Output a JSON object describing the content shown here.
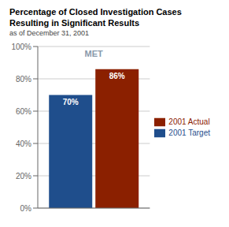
{
  "chart_data": {
    "type": "bar",
    "title": "Percentage of Closed Investigation Cases\nResulting in Significant Results",
    "subtitle": "as of December 31, 2001",
    "categories": [
      null
    ],
    "series": [
      {
        "name": "2001 Target",
        "color": "#1F4E8C",
        "values": [
          70
        ],
        "value_labels": [
          "70%"
        ]
      },
      {
        "name": "2001 Actual",
        "color": "#8B2000",
        "values": [
          86
        ],
        "value_labels": [
          "86%"
        ]
      }
    ],
    "ylim": [
      0,
      100
    ],
    "yticks": [
      {
        "value": 0,
        "label": "0%"
      },
      {
        "value": 20,
        "label": "20%"
      },
      {
        "value": 40,
        "label": "40%"
      },
      {
        "value": 60,
        "label": "60%"
      },
      {
        "value": 80,
        "label": "80%"
      },
      {
        "value": 100,
        "label": "100%"
      }
    ],
    "grid": true,
    "legend": "right",
    "data_labels": true,
    "tick_labels": "y",
    "annotations": [
      {
        "text": "MET",
        "color": "#8899AA"
      }
    ]
  }
}
